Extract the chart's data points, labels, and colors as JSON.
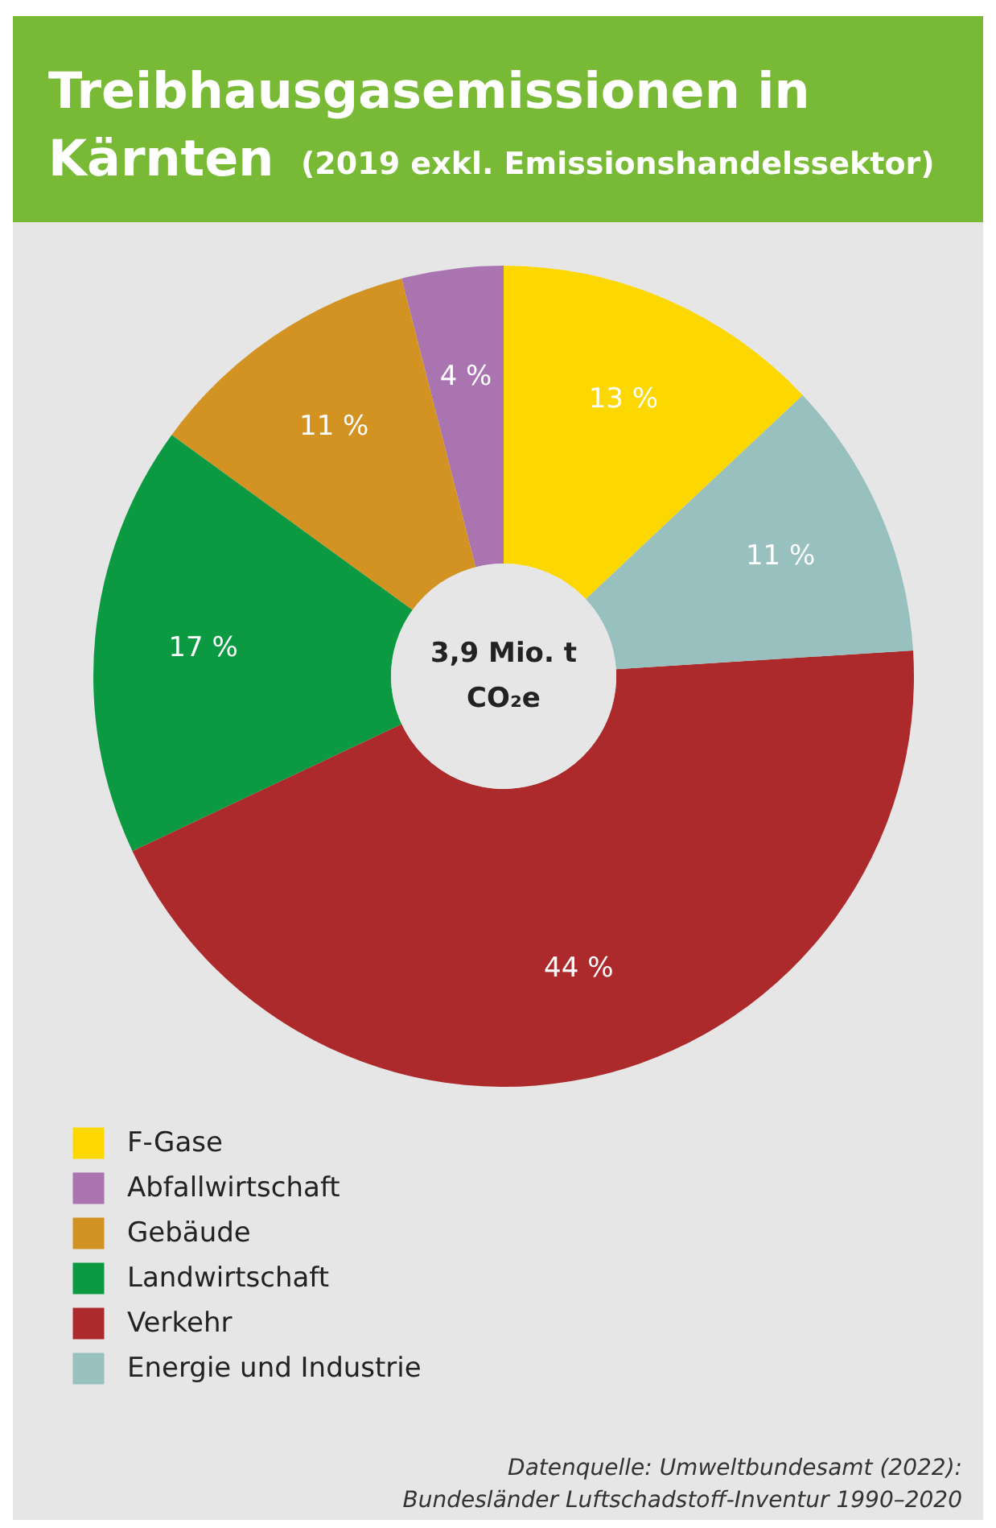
{
  "chart_data": {
    "type": "donut",
    "title": "Treibhausgasemissionen in Kärnten",
    "subtitle": "(2019 exkl. Emissionshandelssektor)",
    "categories": [
      "F-Gase",
      "Abfallwirtschaft",
      "Gebäude",
      "Landwirtschaft",
      "Verkehr",
      "Energie und Industrie"
    ],
    "values": [
      13,
      4,
      11,
      17,
      44,
      11
    ],
    "colors": [
      "#fcd800",
      "#a974b0",
      "#d39322",
      "#0b9a41",
      "#ac2a2c",
      "#98c0be"
    ],
    "value_labels": [
      "13 %",
      "4 %",
      "11 %",
      "17 %",
      "44 %",
      "11 %"
    ],
    "legend": "bottom left",
    "annotations": [
      "3,9 Mio. t",
      "CO₂e",
      "Datenquelle: Umweltbundesamt (2022):",
      "Bundesländer Luftschadstoff-Inventur 1990–2020"
    ]
  }
}
